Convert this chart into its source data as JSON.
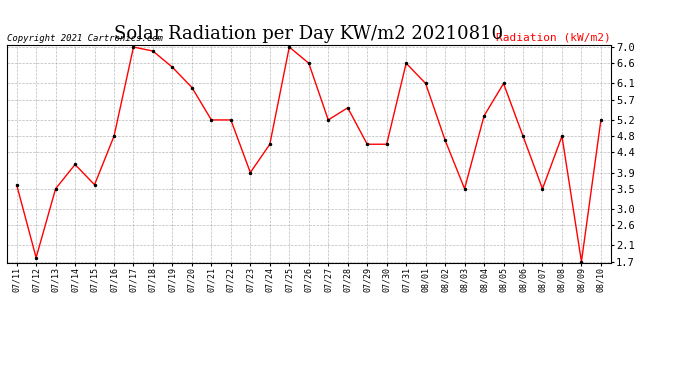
{
  "title": "Solar Radiation per Day KW/m2 20210810",
  "copyright": "Copyright 2021 Cartronics.com",
  "legend_label": "Radiation (kW/m2)",
  "dates": [
    "07/11",
    "07/12",
    "07/13",
    "07/14",
    "07/15",
    "07/16",
    "07/17",
    "07/18",
    "07/19",
    "07/20",
    "07/21",
    "07/22",
    "07/23",
    "07/24",
    "07/25",
    "07/26",
    "07/27",
    "07/28",
    "07/29",
    "07/30",
    "07/31",
    "08/01",
    "08/02",
    "08/03",
    "08/04",
    "08/05",
    "08/06",
    "08/07",
    "08/08",
    "08/09",
    "08/10"
  ],
  "values": [
    3.6,
    1.8,
    3.5,
    4.1,
    3.6,
    4.8,
    7.0,
    6.9,
    6.5,
    6.0,
    5.2,
    5.2,
    3.9,
    4.6,
    7.0,
    6.6,
    5.2,
    5.5,
    4.6,
    4.6,
    6.6,
    6.1,
    4.7,
    3.5,
    5.3,
    6.1,
    4.8,
    3.5,
    4.8,
    1.7,
    5.2
  ],
  "line_color": "red",
  "marker_color": "black",
  "marker": ".",
  "ylim_min": 1.7,
  "ylim_max": 7.0,
  "yticks": [
    1.7,
    2.1,
    2.6,
    3.0,
    3.5,
    3.9,
    4.4,
    4.8,
    5.2,
    5.7,
    6.1,
    6.6,
    7.0
  ],
  "title_fontsize": 13,
  "background_color": "#ffffff",
  "grid_color": "#aaaaaa",
  "copyright_color": "black",
  "legend_color": "red"
}
